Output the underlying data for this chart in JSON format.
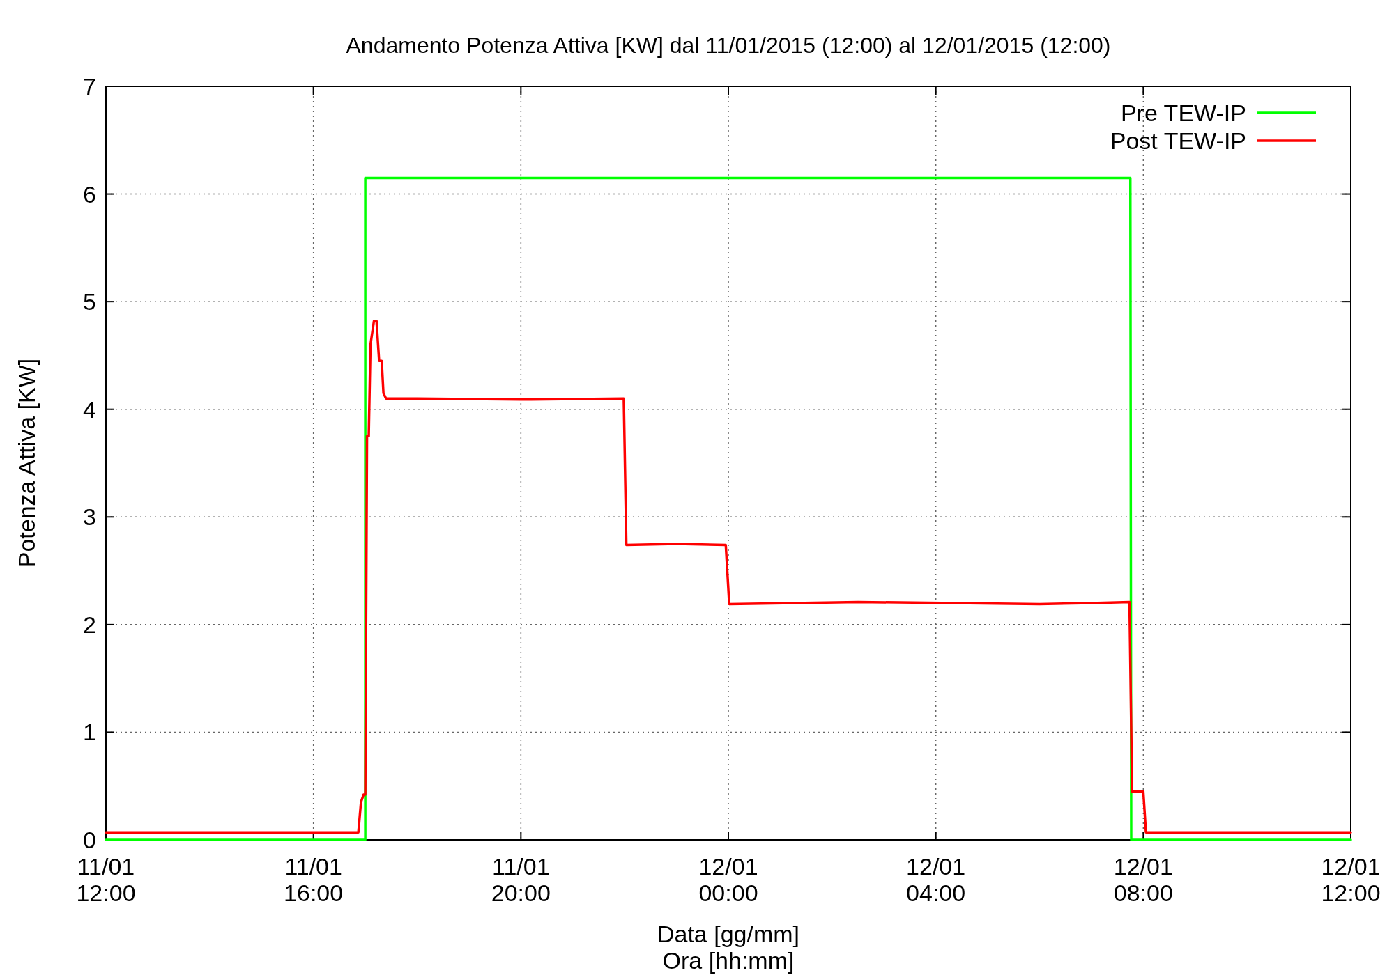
{
  "chart_data": {
    "type": "line",
    "title": "Andamento Potenza Attiva [KW] dal 11/01/2015 (12:00) al 12/01/2015 (12:00)",
    "xlabel": "Data [gg/mm]\nOra [hh:mm]",
    "ylabel": "Potenza Attiva [KW]",
    "xlim": [
      "2015-01-11T12:00",
      "2015-01-12T12:00"
    ],
    "xticks": [
      {
        "value": "2015-01-11T12:00",
        "label": "11/01\n12:00"
      },
      {
        "value": "2015-01-11T16:00",
        "label": "11/01\n16:00"
      },
      {
        "value": "2015-01-11T20:00",
        "label": "11/01\n20:00"
      },
      {
        "value": "2015-01-12T00:00",
        "label": "12/01\n00:00"
      },
      {
        "value": "2015-01-12T04:00",
        "label": "12/01\n04:00"
      },
      {
        "value": "2015-01-12T08:00",
        "label": "12/01\n08:00"
      },
      {
        "value": "2015-01-12T12:00",
        "label": "12/01\n12:00"
      }
    ],
    "ylim": [
      0,
      7
    ],
    "yticks": [
      0,
      1,
      2,
      3,
      4,
      5,
      6,
      7
    ],
    "grid": true,
    "legend": "top right",
    "line_style": "solid",
    "marker": "none",
    "series": [
      {
        "name": "Pre TEW-IP",
        "color": "#00ff00",
        "x": [
          "2015-01-11T12:00",
          "2015-01-11T17:00",
          "2015-01-11T17:00",
          "2015-01-12T07:45",
          "2015-01-12T07:46",
          "2015-01-12T12:00"
        ],
        "values": [
          0,
          0,
          6.15,
          6.15,
          0,
          0
        ]
      },
      {
        "name": "Post TEW-IP",
        "color": "#ff0000",
        "x": [
          "2015-01-11T12:00",
          "2015-01-11T16:52",
          "2015-01-11T16:55",
          "2015-01-11T16:58",
          "2015-01-11T17:00",
          "2015-01-11T17:02",
          "2015-01-11T17:04",
          "2015-01-11T17:06",
          "2015-01-11T17:10",
          "2015-01-11T17:13",
          "2015-01-11T17:16",
          "2015-01-11T17:19",
          "2015-01-11T17:21",
          "2015-01-11T17:24",
          "2015-01-11T18:00",
          "2015-01-11T20:00",
          "2015-01-11T21:59",
          "2015-01-11T22:02",
          "2015-01-11T23:00",
          "2015-01-11T23:57",
          "2015-01-12T00:01",
          "2015-01-12T02:30",
          "2015-01-12T06:00",
          "2015-01-12T07:00",
          "2015-01-12T07:44",
          "2015-01-12T07:47",
          "2015-01-12T08:00",
          "2015-01-12T08:03",
          "2015-01-12T12:00"
        ],
        "values": [
          0.07,
          0.07,
          0.35,
          0.42,
          0.42,
          3.75,
          3.75,
          4.6,
          4.82,
          4.82,
          4.45,
          4.45,
          4.15,
          4.1,
          4.1,
          4.09,
          4.1,
          2.74,
          2.75,
          2.74,
          2.19,
          2.21,
          2.19,
          2.2,
          2.21,
          0.45,
          0.45,
          0.07,
          0.07
        ]
      }
    ]
  }
}
